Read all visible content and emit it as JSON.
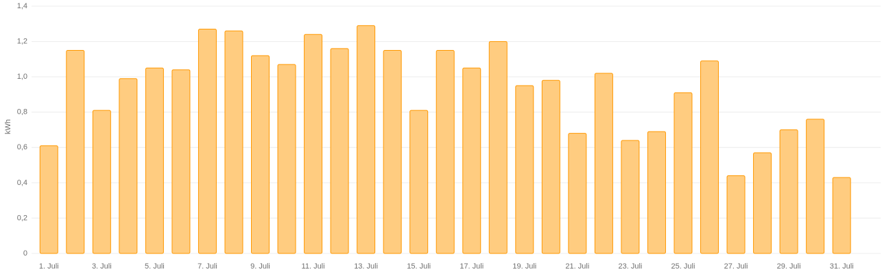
{
  "chart_data": {
    "type": "bar",
    "y_label": "kWh",
    "categories": [
      "1. Juli",
      null,
      "3. Juli",
      null,
      "5. Juli",
      null,
      "7. Juli",
      null,
      "9. Juli",
      null,
      "11. Juli",
      null,
      "13. Juli",
      null,
      "15. Juli",
      null,
      "17. Juli",
      null,
      "19. Juli",
      null,
      "21. Juli",
      null,
      "23. Juli",
      null,
      "25. Juli",
      null,
      "27. Juli",
      null,
      "29. Juli",
      null,
      "31. Juli"
    ],
    "values": [
      0.61,
      1.15,
      0.81,
      0.99,
      1.05,
      1.04,
      1.27,
      1.26,
      1.12,
      1.07,
      1.24,
      1.16,
      1.29,
      1.15,
      0.81,
      1.15,
      1.05,
      1.2,
      0.95,
      0.98,
      0.68,
      1.02,
      0.64,
      0.69,
      0.91,
      1.09,
      0.44,
      0.57,
      0.7,
      0.76,
      0.43
    ],
    "color": "#ffcc80",
    "edge_color": "#ff9800",
    "ylim": [
      0,
      1.4
    ],
    "yticks": [
      0,
      {
        "value": 0.2,
        "label": "0,2"
      },
      {
        "value": 0.4,
        "label": "0,4"
      },
      {
        "value": 0.6,
        "label": "0,6"
      },
      {
        "value": 0.8,
        "label": "0,8"
      },
      {
        "value": 1.0,
        "label": "1,0"
      },
      {
        "value": 1.2,
        "label": "1,2"
      },
      {
        "value": 1.4,
        "label": "1,4"
      }
    ],
    "grid": true
  }
}
